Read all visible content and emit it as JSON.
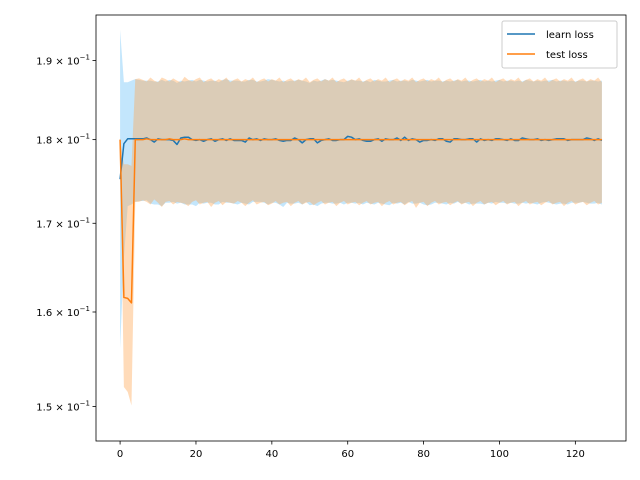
{
  "chart_data": {
    "type": "line",
    "title": "",
    "xlabel": "",
    "ylabel": "",
    "y_scale": "log",
    "xlim": [
      -6.35,
      133.35
    ],
    "ylim": [
      0.1465,
      0.196
    ],
    "x_ticks": [
      0,
      20,
      40,
      60,
      80,
      100,
      120
    ],
    "x_tick_labels": [
      "0",
      "20",
      "40",
      "60",
      "80",
      "100",
      "120"
    ],
    "y_ticks": [
      0.15,
      0.16,
      0.17,
      0.18,
      0.19
    ],
    "y_tick_mantissas": [
      "1.5",
      "1.6",
      "1.7",
      "1.8",
      "1.9"
    ],
    "y_tick_base": "10",
    "y_tick_exponent": "−1",
    "y_tick_times": "×",
    "grid": false,
    "legend_position": "top-right",
    "series": [
      {
        "name": "learn loss",
        "color": "#1f77b4",
        "band_color": "#87cefa",
        "x_start": 0,
        "values": [
          0.1752,
          0.1795,
          0.1801,
          0.1801,
          0.1801,
          0.1801,
          0.1801,
          0.1802,
          0.18,
          0.1797,
          0.1801,
          0.18,
          0.18,
          0.18,
          0.1799,
          0.1794,
          0.1802,
          0.1803,
          0.1803,
          0.18,
          0.1799,
          0.18,
          0.1798,
          0.18,
          0.1801,
          0.1798,
          0.18,
          0.1801,
          0.1799,
          0.1801,
          0.1799,
          0.1799,
          0.1799,
          0.1797,
          0.1802,
          0.18,
          0.1801,
          0.1799,
          0.1801,
          0.18,
          0.18,
          0.1801,
          0.1799,
          0.1798,
          0.1799,
          0.1799,
          0.1802,
          0.18,
          0.1796,
          0.18,
          0.1801,
          0.1801,
          0.1796,
          0.1799,
          0.18,
          0.1801,
          0.1799,
          0.1799,
          0.18,
          0.18,
          0.1804,
          0.1803,
          0.18,
          0.1801,
          0.1799,
          0.1798,
          0.1798,
          0.18,
          0.1801,
          0.1798,
          0.1801,
          0.18,
          0.18,
          0.1802,
          0.1799,
          0.1803,
          0.1799,
          0.1801,
          0.18,
          0.1797,
          0.1799,
          0.1799,
          0.18,
          0.1799,
          0.1801,
          0.1801,
          0.1798,
          0.1797,
          0.1801,
          0.1801,
          0.18,
          0.18,
          0.1801,
          0.1801,
          0.1797,
          0.1801,
          0.1799,
          0.18,
          0.1799,
          0.1801,
          0.1801,
          0.18,
          0.1799,
          0.1801,
          0.1799,
          0.1799,
          0.1802,
          0.1801,
          0.18,
          0.18,
          0.1801,
          0.1799,
          0.18,
          0.1799,
          0.18,
          0.1801,
          0.1801,
          0.1801,
          0.1799,
          0.18,
          0.18,
          0.18,
          0.18,
          0.1802,
          0.1801,
          0.1799,
          0.1801,
          0.1799
        ],
        "lower": [
          0.1561,
          0.166,
          0.172,
          0.1722,
          0.1725,
          0.1726,
          0.1726,
          0.1727,
          0.1723,
          0.1722,
          0.1722,
          0.172,
          0.1724,
          0.1724,
          0.1725,
          0.1723,
          0.1724,
          0.1722,
          0.1722,
          0.1722,
          0.172,
          0.1724,
          0.1723,
          0.1724,
          0.1724,
          0.1722,
          0.1722,
          0.1725,
          0.1724,
          0.1724,
          0.1723,
          0.1722,
          0.1724,
          0.1723,
          0.1722,
          0.1725,
          0.1725,
          0.1725,
          0.1724,
          0.1722,
          0.1724,
          0.1724,
          0.1722,
          0.1719,
          0.1724,
          0.1723,
          0.1723,
          0.1724,
          0.1722,
          0.1725,
          0.1721,
          0.1722,
          0.172,
          0.1723,
          0.1724,
          0.1724,
          0.1723,
          0.1723,
          0.1724,
          0.1722,
          0.1724,
          0.1724,
          0.1723,
          0.1724,
          0.1722,
          0.1724,
          0.1723,
          0.1722,
          0.1724,
          0.1723,
          0.1722,
          0.1721,
          0.1724,
          0.1723,
          0.1724,
          0.1722,
          0.1725,
          0.1723,
          0.1723,
          0.1724,
          0.1722,
          0.1721,
          0.1722,
          0.1724,
          0.1724,
          0.1723,
          0.1722,
          0.1724,
          0.1723,
          0.1725,
          0.1723,
          0.1724,
          0.1722,
          0.1723,
          0.1723,
          0.1723,
          0.1722,
          0.1724,
          0.1723,
          0.1725,
          0.1724,
          0.1724,
          0.1723,
          0.1724,
          0.1723,
          0.1723,
          0.1724,
          0.1723,
          0.1724,
          0.1723,
          0.1722,
          0.1724,
          0.1725,
          0.1724,
          0.1723,
          0.1722,
          0.1723,
          0.1723,
          0.1722,
          0.1724,
          0.1724,
          0.1724,
          0.1725,
          0.1724,
          0.1723,
          0.1723,
          0.1724,
          0.1722
        ],
        "upper": [
          0.194,
          0.1872,
          0.1872,
          0.1874,
          0.1876,
          0.1875,
          0.1874,
          0.1874,
          0.1874,
          0.1873,
          0.1873,
          0.1875,
          0.1873,
          0.1875,
          0.1874,
          0.1871,
          0.1874,
          0.1873,
          0.1874,
          0.1875,
          0.1873,
          0.1875,
          0.1874,
          0.1873,
          0.1874,
          0.1874,
          0.1872,
          0.1875,
          0.1876,
          0.1874,
          0.1874,
          0.1874,
          0.1873,
          0.1873,
          0.1875,
          0.1875,
          0.1873,
          0.1873,
          0.1874,
          0.1876,
          0.1875,
          0.1874,
          0.1873,
          0.1874,
          0.1873,
          0.1874,
          0.1874,
          0.1875,
          0.1874,
          0.1873,
          0.1871,
          0.1874,
          0.1873,
          0.1874,
          0.1876,
          0.1874,
          0.1875,
          0.1874,
          0.1873,
          0.1872,
          0.1874,
          0.1875,
          0.1874,
          0.1874,
          0.1873,
          0.1874,
          0.1872,
          0.1875,
          0.1874,
          0.1873,
          0.1873,
          0.1874,
          0.1875,
          0.1873,
          0.1874,
          0.1874,
          0.1873,
          0.1875,
          0.1874,
          0.1873,
          0.1874,
          0.1875,
          0.1873,
          0.1874,
          0.1874,
          0.1873,
          0.1874,
          0.1873,
          0.1874,
          0.1875,
          0.1873,
          0.1874,
          0.1874,
          0.1873,
          0.1874,
          0.1875,
          0.1873,
          0.1874,
          0.1873,
          0.1874,
          0.1875,
          0.1873,
          0.1874,
          0.1874,
          0.1873,
          0.1874,
          0.1873,
          0.1875,
          0.1874,
          0.1873,
          0.1874,
          0.1873,
          0.1874,
          0.1874,
          0.1875,
          0.1873,
          0.1874,
          0.1874,
          0.1873,
          0.1874,
          0.1873,
          0.1874,
          0.1874,
          0.1873,
          0.1874,
          0.1874,
          0.1873,
          0.1874
        ]
      },
      {
        "name": "test loss",
        "color": "#ff7f0e",
        "band_color": "#ffa54f",
        "x_start": 0,
        "values": [
          0.18,
          0.1616,
          0.1615,
          0.161,
          0.18,
          0.18,
          0.18,
          0.1801,
          0.18,
          0.18,
          0.18,
          0.18,
          0.18,
          0.1801,
          0.18,
          0.18,
          0.18,
          0.1801,
          0.18,
          0.18,
          0.18,
          0.18,
          0.18,
          0.18,
          0.18,
          0.18,
          0.18,
          0.18,
          0.18,
          0.18,
          0.18,
          0.18,
          0.18,
          0.18,
          0.18,
          0.18,
          0.18,
          0.18,
          0.18,
          0.18,
          0.18,
          0.18,
          0.18,
          0.18,
          0.18,
          0.18,
          0.18,
          0.18,
          0.18,
          0.18,
          0.18,
          0.18,
          0.18,
          0.18,
          0.18,
          0.18,
          0.18,
          0.18,
          0.18,
          0.18,
          0.18,
          0.18,
          0.18,
          0.18,
          0.18,
          0.18,
          0.18,
          0.18,
          0.18,
          0.18,
          0.18,
          0.18,
          0.18,
          0.18,
          0.18,
          0.18,
          0.18,
          0.18,
          0.18,
          0.18,
          0.18,
          0.18,
          0.18,
          0.18,
          0.18,
          0.18,
          0.18,
          0.18,
          0.18,
          0.18,
          0.18,
          0.18,
          0.18,
          0.18,
          0.18,
          0.18,
          0.18,
          0.18,
          0.18,
          0.18,
          0.18,
          0.18,
          0.18,
          0.18,
          0.18,
          0.18,
          0.18,
          0.18,
          0.18,
          0.18,
          0.18,
          0.18,
          0.18,
          0.18,
          0.18,
          0.18,
          0.18,
          0.18,
          0.18,
          0.18,
          0.18,
          0.18,
          0.18,
          0.18,
          0.18,
          0.18,
          0.18,
          0.18
        ],
        "lower": [
          0.18,
          0.152,
          0.1515,
          0.1501,
          0.1725,
          0.1725,
          0.1727,
          0.1725,
          0.1722,
          0.1728,
          0.1724,
          0.1719,
          0.1725,
          0.1726,
          0.1722,
          0.1725,
          0.1724,
          0.1723,
          0.172,
          0.1725,
          0.1727,
          0.1722,
          0.1724,
          0.1725,
          0.1719,
          0.1724,
          0.1726,
          0.1721,
          0.1725,
          0.1724,
          0.1723,
          0.1726,
          0.1724,
          0.172,
          0.1724,
          0.1727,
          0.1722,
          0.1724,
          0.1725,
          0.1721,
          0.1723,
          0.1726,
          0.1722,
          0.1724,
          0.1725,
          0.172,
          0.1724,
          0.1726,
          0.1722,
          0.1724,
          0.1725,
          0.1721,
          0.1724,
          0.1726,
          0.1722,
          0.1724,
          0.1725,
          0.172,
          0.1724,
          0.1726,
          0.1722,
          0.1724,
          0.1725,
          0.1721,
          0.1724,
          0.1726,
          0.1722,
          0.1724,
          0.1725,
          0.172,
          0.1724,
          0.1726,
          0.1722,
          0.1724,
          0.1725,
          0.1721,
          0.1724,
          0.1726,
          0.1718,
          0.1724,
          0.1725,
          0.172,
          0.1724,
          0.1726,
          0.1722,
          0.1724,
          0.1725,
          0.1721,
          0.1724,
          0.1726,
          0.1722,
          0.1724,
          0.1725,
          0.172,
          0.1724,
          0.1726,
          0.1722,
          0.1724,
          0.1725,
          0.1721,
          0.1724,
          0.1726,
          0.1722,
          0.1724,
          0.1725,
          0.172,
          0.1724,
          0.1726,
          0.1722,
          0.1724,
          0.1725,
          0.1721,
          0.1724,
          0.1726,
          0.1722,
          0.1724,
          0.1725,
          0.172,
          0.1724,
          0.1726,
          0.1722,
          0.1724,
          0.1725,
          0.1721,
          0.1724,
          0.1726,
          0.1722,
          0.1724
        ],
        "upper": [
          0.18,
          0.177,
          0.177,
          0.1768,
          0.1876,
          0.1877,
          0.1875,
          0.1873,
          0.1878,
          0.1874,
          0.1872,
          0.1878,
          0.1876,
          0.1873,
          0.1877,
          0.1874,
          0.1872,
          0.1879,
          0.1875,
          0.1873,
          0.1876,
          0.1878,
          0.1872,
          0.1875,
          0.1877,
          0.1873,
          0.1876,
          0.1874,
          0.1878,
          0.1872,
          0.1875,
          0.1877,
          0.1873,
          0.1876,
          0.1874,
          0.1878,
          0.1872,
          0.1875,
          0.1877,
          0.1873,
          0.1876,
          0.1874,
          0.1878,
          0.1872,
          0.1875,
          0.1877,
          0.1873,
          0.1876,
          0.1874,
          0.1878,
          0.1872,
          0.1875,
          0.1877,
          0.1873,
          0.1876,
          0.1874,
          0.1878,
          0.1872,
          0.1875,
          0.1877,
          0.1873,
          0.1876,
          0.1874,
          0.1878,
          0.1872,
          0.1875,
          0.1877,
          0.1873,
          0.1876,
          0.1874,
          0.1878,
          0.1872,
          0.1875,
          0.1877,
          0.1873,
          0.1876,
          0.1874,
          0.1878,
          0.1872,
          0.1875,
          0.1877,
          0.1873,
          0.1876,
          0.1874,
          0.1878,
          0.1872,
          0.1875,
          0.1877,
          0.1873,
          0.1876,
          0.1874,
          0.1878,
          0.1872,
          0.1875,
          0.1877,
          0.1873,
          0.1876,
          0.1874,
          0.1878,
          0.1872,
          0.1875,
          0.1877,
          0.1873,
          0.1876,
          0.1874,
          0.1878,
          0.1872,
          0.1875,
          0.1877,
          0.1873,
          0.1876,
          0.1874,
          0.1878,
          0.1872,
          0.1875,
          0.1877,
          0.1873,
          0.1876,
          0.1874,
          0.1878,
          0.1872,
          0.1875,
          0.1877,
          0.1873,
          0.1876,
          0.1874,
          0.1878,
          0.1872
        ]
      }
    ]
  }
}
